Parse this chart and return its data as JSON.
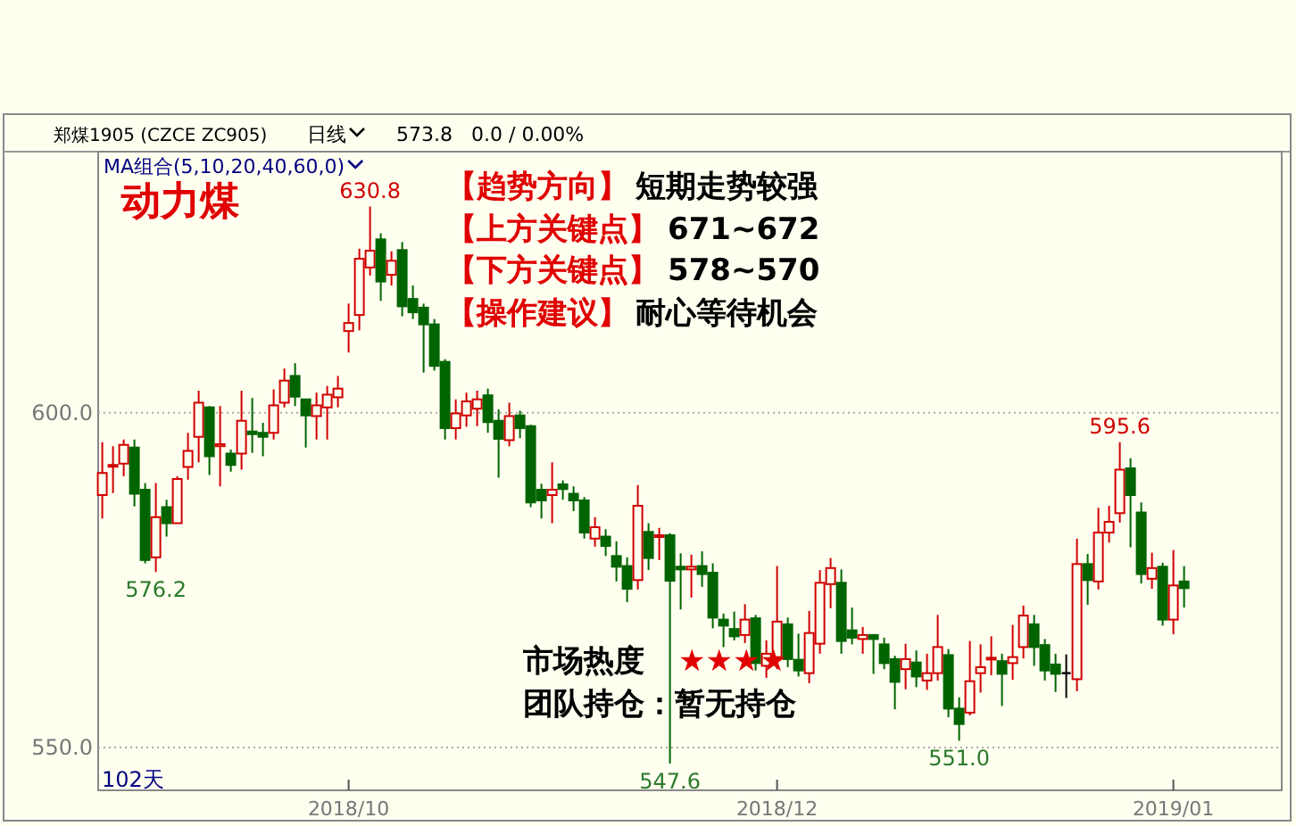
{
  "chart_data": {
    "type": "candlestick",
    "title": "动力煤",
    "categories": [
      null,
      null,
      null,
      null,
      null,
      null,
      null,
      null,
      null,
      null,
      null,
      null,
      null,
      null,
      null,
      null,
      null,
      null,
      null,
      null,
      null,
      null,
      null,
      "2018/10",
      null,
      null,
      null,
      null,
      null,
      null,
      null,
      null,
      null,
      null,
      null,
      null,
      null,
      null,
      null,
      null,
      null,
      null,
      null,
      null,
      null,
      null,
      null,
      null,
      null,
      null,
      null,
      null,
      null,
      null,
      null,
      null,
      null,
      null,
      null,
      null,
      null,
      null,
      null,
      "2018/12",
      null,
      null,
      null,
      null,
      null,
      null,
      null,
      null,
      null,
      null,
      null,
      null,
      null,
      null,
      null,
      null,
      null,
      null,
      null,
      null,
      null,
      null,
      null,
      null,
      null,
      null,
      null,
      null,
      null,
      null,
      null,
      null,
      null,
      null,
      null,
      null,
      "2019/01",
      null
    ],
    "ohlc": [
      [
        587.7,
        595.6,
        584.2,
        591.0
      ],
      [
        592.0,
        595.0,
        588.0,
        592.2
      ],
      [
        592.4,
        596.0,
        590.5,
        595.2
      ],
      [
        594.8,
        596.0,
        586.0,
        587.9
      ],
      [
        588.5,
        589.5,
        577.5,
        578.0
      ],
      [
        578.4,
        589.5,
        576.2,
        584.4
      ],
      [
        585.9,
        587.0,
        581.5,
        583.5
      ],
      [
        583.5,
        590.5,
        583.5,
        590.1
      ],
      [
        591.9,
        597.0,
        590.0,
        594.3
      ],
      [
        596.4,
        603.3,
        592.6,
        601.5
      ],
      [
        600.8,
        601.0,
        590.7,
        593.5
      ],
      [
        595.0,
        601.0,
        589.0,
        595.3
      ],
      [
        593.9,
        594.5,
        591.2,
        592.2
      ],
      [
        593.9,
        603.3,
        591.5,
        598.8
      ],
      [
        597.2,
        602.2,
        594.0,
        596.8
      ],
      [
        597.0,
        598.5,
        593.5,
        596.4
      ],
      [
        597.0,
        603.5,
        596.0,
        601.1
      ],
      [
        601.5,
        606.6,
        600.8,
        604.8
      ],
      [
        605.5,
        607.4,
        601.0,
        602.4
      ],
      [
        602.0,
        602.0,
        594.8,
        599.6
      ],
      [
        599.5,
        603.0,
        596.0,
        601.1
      ],
      [
        600.8,
        604.0,
        596.0,
        602.7
      ],
      [
        602.3,
        605.5,
        600.8,
        603.6
      ],
      [
        612.2,
        616.3,
        609.0,
        613.4
      ],
      [
        614.6,
        624.5,
        612.3,
        623.0
      ],
      [
        621.7,
        630.8,
        620.5,
        624.2
      ],
      [
        625.9,
        626.8,
        616.7,
        619.6
      ],
      [
        620.6,
        624.1,
        619.0,
        622.7
      ],
      [
        624.3,
        625.5,
        614.4,
        615.9
      ],
      [
        617.0,
        619.0,
        614.0,
        615.0
      ],
      [
        615.7,
        616.3,
        606.0,
        613.2
      ],
      [
        613.2,
        614.0,
        606.3,
        607.0
      ],
      [
        607.6,
        608.0,
        596.0,
        597.7
      ],
      [
        597.7,
        602.0,
        596.0,
        599.9
      ],
      [
        599.6,
        603.0,
        597.9,
        601.7
      ],
      [
        600.6,
        603.3,
        598.0,
        602.0
      ],
      [
        602.6,
        603.6,
        597.0,
        598.6
      ],
      [
        598.8,
        600.5,
        590.3,
        596.1
      ],
      [
        595.9,
        601.5,
        595.0,
        599.5
      ],
      [
        599.6,
        600.3,
        596.2,
        597.7
      ],
      [
        598.0,
        598.2,
        585.9,
        586.6
      ],
      [
        588.5,
        589.4,
        584.2,
        586.9
      ],
      [
        587.7,
        592.6,
        583.5,
        588.5
      ],
      [
        589.3,
        589.9,
        587.0,
        588.6
      ],
      [
        587.9,
        589.0,
        585.3,
        586.9
      ],
      [
        586.9,
        587.4,
        581.2,
        582.1
      ],
      [
        581.2,
        584.4,
        580.0,
        582.9
      ],
      [
        581.5,
        582.6,
        578.6,
        580.1
      ],
      [
        578.6,
        580.8,
        574.8,
        577.0
      ],
      [
        577.1,
        578.4,
        571.7,
        573.7
      ],
      [
        575.0,
        589.2,
        573.6,
        586.1
      ],
      [
        582.2,
        583.5,
        576.5,
        578.3
      ],
      [
        581.6,
        582.8,
        578.0,
        581.7
      ],
      [
        581.7,
        582.0,
        547.6,
        574.9
      ],
      [
        577.0,
        579.0,
        570.6,
        576.6
      ],
      [
        576.6,
        578.8,
        572.4,
        577.0
      ],
      [
        577.1,
        579.3,
        574.0,
        575.9
      ],
      [
        576.1,
        577.5,
        567.8,
        569.4
      ],
      [
        569.1,
        570.0,
        565.0,
        568.2
      ],
      [
        567.7,
        570.3,
        566.0,
        566.6
      ],
      [
        566.8,
        571.4,
        565.6,
        569.1
      ],
      [
        569.3,
        569.8,
        561.5,
        562.6
      ],
      [
        562.2,
        566.0,
        560.4,
        564.0
      ],
      [
        563.5,
        577.1,
        561.7,
        568.8
      ],
      [
        568.4,
        569.4,
        562.0,
        563.2
      ],
      [
        563.1,
        567.0,
        560.6,
        561.5
      ],
      [
        561.1,
        570.4,
        559.6,
        567.1
      ],
      [
        565.5,
        576.5,
        564.0,
        574.6
      ],
      [
        574.4,
        578.3,
        570.8,
        576.8
      ],
      [
        574.6,
        576.6,
        564.0,
        565.9
      ],
      [
        567.5,
        570.9,
        565.4,
        566.4
      ],
      [
        566.2,
        568.0,
        564.0,
        566.8
      ],
      [
        566.8,
        566.8,
        561.0,
        566.2
      ],
      [
        565.4,
        566.4,
        561.7,
        562.6
      ],
      [
        563.2,
        563.7,
        555.7,
        559.8
      ],
      [
        561.7,
        565.5,
        558.7,
        563.2
      ],
      [
        562.7,
        564.5,
        559.0,
        560.6
      ],
      [
        560.0,
        564.0,
        558.6,
        561.1
      ],
      [
        561.1,
        569.8,
        560.0,
        565.0
      ],
      [
        563.8,
        564.7,
        554.5,
        555.8
      ],
      [
        555.8,
        557.5,
        551.0,
        553.5
      ],
      [
        555.2,
        565.9,
        554.8,
        559.9
      ],
      [
        561.1,
        565.4,
        558.2,
        562.0
      ],
      [
        563.2,
        566.6,
        560.8,
        563.4
      ],
      [
        562.9,
        564.0,
        556.2,
        561.0
      ],
      [
        562.6,
        568.3,
        560.1,
        563.5
      ],
      [
        565.0,
        571.2,
        563.3,
        569.7
      ],
      [
        568.4,
        569.8,
        562.2,
        565.0
      ],
      [
        565.3,
        566.2,
        560.0,
        561.5
      ],
      [
        562.4,
        564.0,
        558.3,
        561.0
      ],
      [
        561.1,
        563.9,
        557.4,
        561.1
      ],
      [
        560.2,
        581.2,
        558.4,
        577.4
      ],
      [
        577.4,
        578.9,
        571.3,
        575.0
      ],
      [
        574.8,
        585.8,
        573.6,
        582.1
      ],
      [
        582.1,
        586.1,
        580.6,
        583.7
      ],
      [
        585.0,
        595.6,
        583.6,
        591.5
      ],
      [
        591.7,
        593.2,
        579.9,
        587.7
      ],
      [
        585.1,
        586.6,
        574.5,
        575.9
      ],
      [
        575.2,
        579.1,
        573.7,
        576.8
      ],
      [
        577.0,
        577.6,
        568.2,
        569.1
      ],
      [
        569.1,
        579.5,
        566.9,
        574.2
      ],
      [
        574.8,
        577.1,
        570.9,
        573.8
      ]
    ],
    "colors": [
      "#d00000",
      "#d00000",
      "#d00000",
      "#006400",
      "#006400",
      "#d00000",
      "#006400",
      "#d00000",
      "#d00000",
      "#d00000",
      "#006400",
      "#d00000",
      "#006400",
      "#d00000",
      "#006400",
      "#006400",
      "#d00000",
      "#d00000",
      "#006400",
      "#006400",
      "#d00000",
      "#d00000",
      "#d00000",
      "#d00000",
      "#d00000",
      "#d00000",
      "#006400",
      "#d00000",
      "#006400",
      "#006400",
      "#006400",
      "#006400",
      "#006400",
      "#d00000",
      "#d00000",
      "#d00000",
      "#006400",
      "#006400",
      "#d00000",
      "#006400",
      "#006400",
      "#006400",
      "#d00000",
      "#006400",
      "#006400",
      "#006400",
      "#d00000",
      "#006400",
      "#006400",
      "#006400",
      "#d00000",
      "#006400",
      "#d00000",
      "#006400",
      "#006400",
      "#d00000",
      "#006400",
      "#006400",
      "#006400",
      "#006400",
      "#d00000",
      "#006400",
      "#d00000",
      "#d00000",
      "#006400",
      "#006400",
      "#d00000",
      "#d00000",
      "#d00000",
      "#006400",
      "#006400",
      "#d00000",
      "#006400",
      "#006400",
      "#006400",
      "#d00000",
      "#006400",
      "#d00000",
      "#d00000",
      "#006400",
      "#006400",
      "#d00000",
      "#d00000",
      "#d00000",
      "#006400",
      "#d00000",
      "#d00000",
      "#006400",
      "#006400",
      "#006400",
      "#000000",
      "#d00000",
      "#006400",
      "#d00000",
      "#d00000",
      "#d00000",
      "#006400",
      "#006400",
      "#d00000",
      "#006400",
      "#d00000",
      "#006400"
    ],
    "ylim": [
      543.6,
      639.0
    ],
    "yticks": [
      {
        "value": 550,
        "label": "550.0"
      },
      {
        "value": 600,
        "label": "600.0"
      }
    ],
    "grid": "y",
    "annotations": [
      "郑煤1905 (CZCE ZC905)",
      "日线",
      "573.8",
      "0.0 / 0.00%",
      "MA组合(5,10,20,40,60,0)",
      "【趋势方向】",
      "短期走势较强",
      "【上方关键点】",
      "671~672",
      "【下方关键点】",
      "578~570",
      "【操作建议】",
      "耐心等待机会",
      "市场热度",
      "★★★★",
      "团队持仓：暂无持仓",
      "102天",
      {
        "text": "630.8",
        "y": 630.8
      },
      {
        "text": "576.2",
        "y": 576.2
      },
      {
        "text": "547.6",
        "y": 547.6
      },
      {
        "text": "595.6",
        "y": 595.6
      },
      {
        "text": "551.0",
        "y": 551.0
      }
    ]
  }
}
